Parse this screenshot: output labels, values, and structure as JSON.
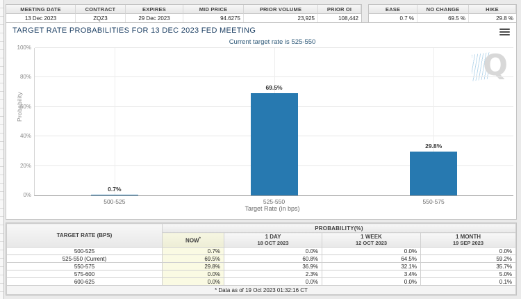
{
  "top_bar": {
    "contract_table": {
      "headers": [
        "MEETING DATE",
        "CONTRACT",
        "EXPIRES",
        "MID PRICE",
        "PRIOR VOLUME",
        "PRIOR OI"
      ],
      "values": [
        "13 Dec 2023",
        "ZQZ3",
        "29 Dec 2023",
        "94.6275",
        "23,925",
        "108,442"
      ]
    },
    "summary_table": {
      "headers": [
        "EASE",
        "NO CHANGE",
        "HIKE"
      ],
      "values": [
        "0.7 %",
        "69.5 %",
        "29.8 %"
      ]
    }
  },
  "chart_panel": {
    "title": "TARGET RATE PROBABILITIES FOR 13 DEC 2023 FED MEETING",
    "subtitle": "Current target rate is 525-550",
    "watermark_letter": "Q",
    "menu_icon": "hamburger-menu-icon"
  },
  "chart_data": {
    "type": "bar",
    "title": "TARGET RATE PROBABILITIES FOR 13 DEC 2023 FED MEETING",
    "subtitle": "Current target rate is 525-550",
    "categories": [
      "500-525",
      "525-550",
      "550-575"
    ],
    "values": [
      0.7,
      69.5,
      29.8
    ],
    "bar_labels": [
      "0.7%",
      "69.5%",
      "29.8%"
    ],
    "xlabel": "Target Rate (in bps)",
    "ylabel": "Probability",
    "ylim": [
      0,
      100
    ],
    "ytick_labels": [
      "0%",
      "20%",
      "40%",
      "60%",
      "80%",
      "100%"
    ],
    "grid": true,
    "legend_position": "none",
    "bar_color": "#2779b0"
  },
  "probability_table": {
    "rate_header": "TARGET RATE (BPS)",
    "group_header": "PROBABILITY(%)",
    "columns": [
      {
        "title": "NOW",
        "sup": "*",
        "sub": ""
      },
      {
        "title": "1 DAY",
        "sup": "",
        "sub": "18 OCT 2023"
      },
      {
        "title": "1 WEEK",
        "sup": "",
        "sub": "12 OCT 2023"
      },
      {
        "title": "1 MONTH",
        "sup": "",
        "sub": "19 SEP 2023"
      }
    ],
    "rows": [
      {
        "rate": "500-525",
        "values": [
          "0.7%",
          "0.0%",
          "0.0%",
          "0.0%"
        ]
      },
      {
        "rate": "525-550 (Current)",
        "values": [
          "69.5%",
          "60.8%",
          "64.5%",
          "59.2%"
        ]
      },
      {
        "rate": "550-575",
        "values": [
          "29.8%",
          "36.9%",
          "32.1%",
          "35.7%"
        ]
      },
      {
        "rate": "575-600",
        "values": [
          "0.0%",
          "2.3%",
          "3.4%",
          "5.0%"
        ]
      },
      {
        "rate": "600-625",
        "values": [
          "0.0%",
          "0.0%",
          "0.0%",
          "0.1%"
        ]
      }
    ],
    "footnote": "* Data as of 19 Oct 2023 01:32:16 CT"
  },
  "colors": {
    "bar": "#2779b0",
    "now_column_bg": "#fafae3",
    "title_text": "#1c3f63"
  }
}
